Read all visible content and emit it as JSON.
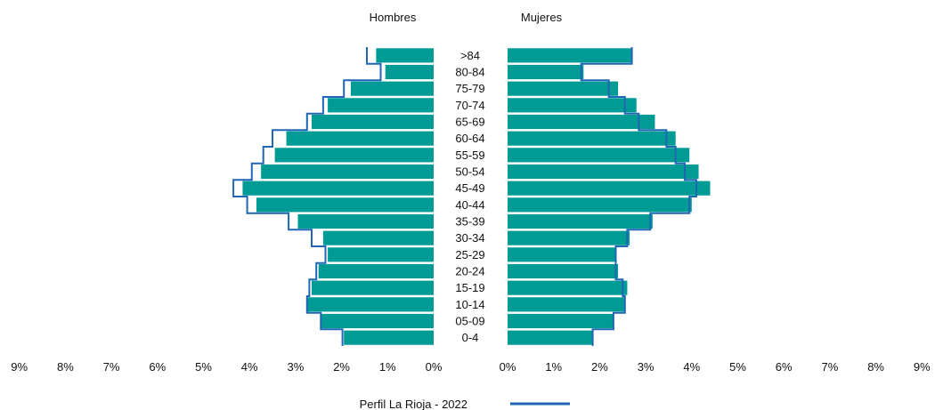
{
  "chart_data": {
    "type": "bar",
    "orientation": "horizontal-pyramid",
    "categories": [
      "0-4",
      "05-09",
      "10-14",
      "15-19",
      "20-24",
      "25-29",
      "30-34",
      "35-39",
      "40-44",
      "45-49",
      "50-54",
      "55-59",
      "60-64",
      "65-69",
      "70-74",
      "75-79",
      "80-84",
      ">84"
    ],
    "series": [
      {
        "name": "Hombres",
        "values": [
          1.95,
          2.45,
          2.75,
          2.65,
          2.5,
          2.3,
          2.4,
          2.95,
          3.85,
          4.15,
          3.75,
          3.45,
          3.2,
          2.65,
          2.3,
          1.8,
          1.05,
          1.25
        ]
      },
      {
        "name": "Mujeres",
        "values": [
          1.85,
          2.3,
          2.55,
          2.6,
          2.4,
          2.35,
          2.65,
          3.15,
          4.0,
          4.4,
          4.15,
          3.95,
          3.65,
          3.2,
          2.8,
          2.4,
          1.65,
          2.7
        ]
      }
    ],
    "profile": {
      "name": "Perfil La Rioja - 2022",
      "hombres": [
        1.98,
        2.45,
        2.75,
        2.7,
        2.55,
        2.35,
        2.65,
        3.15,
        4.05,
        4.35,
        3.95,
        3.7,
        3.5,
        2.75,
        2.4,
        1.95,
        1.15,
        1.45
      ],
      "mujeres": [
        1.85,
        2.3,
        2.55,
        2.5,
        2.35,
        2.35,
        2.6,
        3.1,
        3.95,
        4.1,
        3.85,
        3.65,
        3.45,
        2.85,
        2.55,
        2.2,
        1.6,
        2.7
      ]
    },
    "panel_titles": {
      "left": "Hombres",
      "right": "Mujeres"
    },
    "x_ticks_left": [
      "9%",
      "8%",
      "7%",
      "6%",
      "5%",
      "4%",
      "3%",
      "2%",
      "1%",
      "0%"
    ],
    "x_ticks_right": [
      "0%",
      "1%",
      "2%",
      "3%",
      "4%",
      "5%",
      "6%",
      "7%",
      "8%",
      "9%"
    ],
    "xlim": [
      0,
      9
    ],
    "legend": {
      "label": "Perfil La Rioja - 2022",
      "position": "bottom"
    },
    "colors": {
      "bar": "#009b95",
      "profile": "#2166b4"
    }
  }
}
